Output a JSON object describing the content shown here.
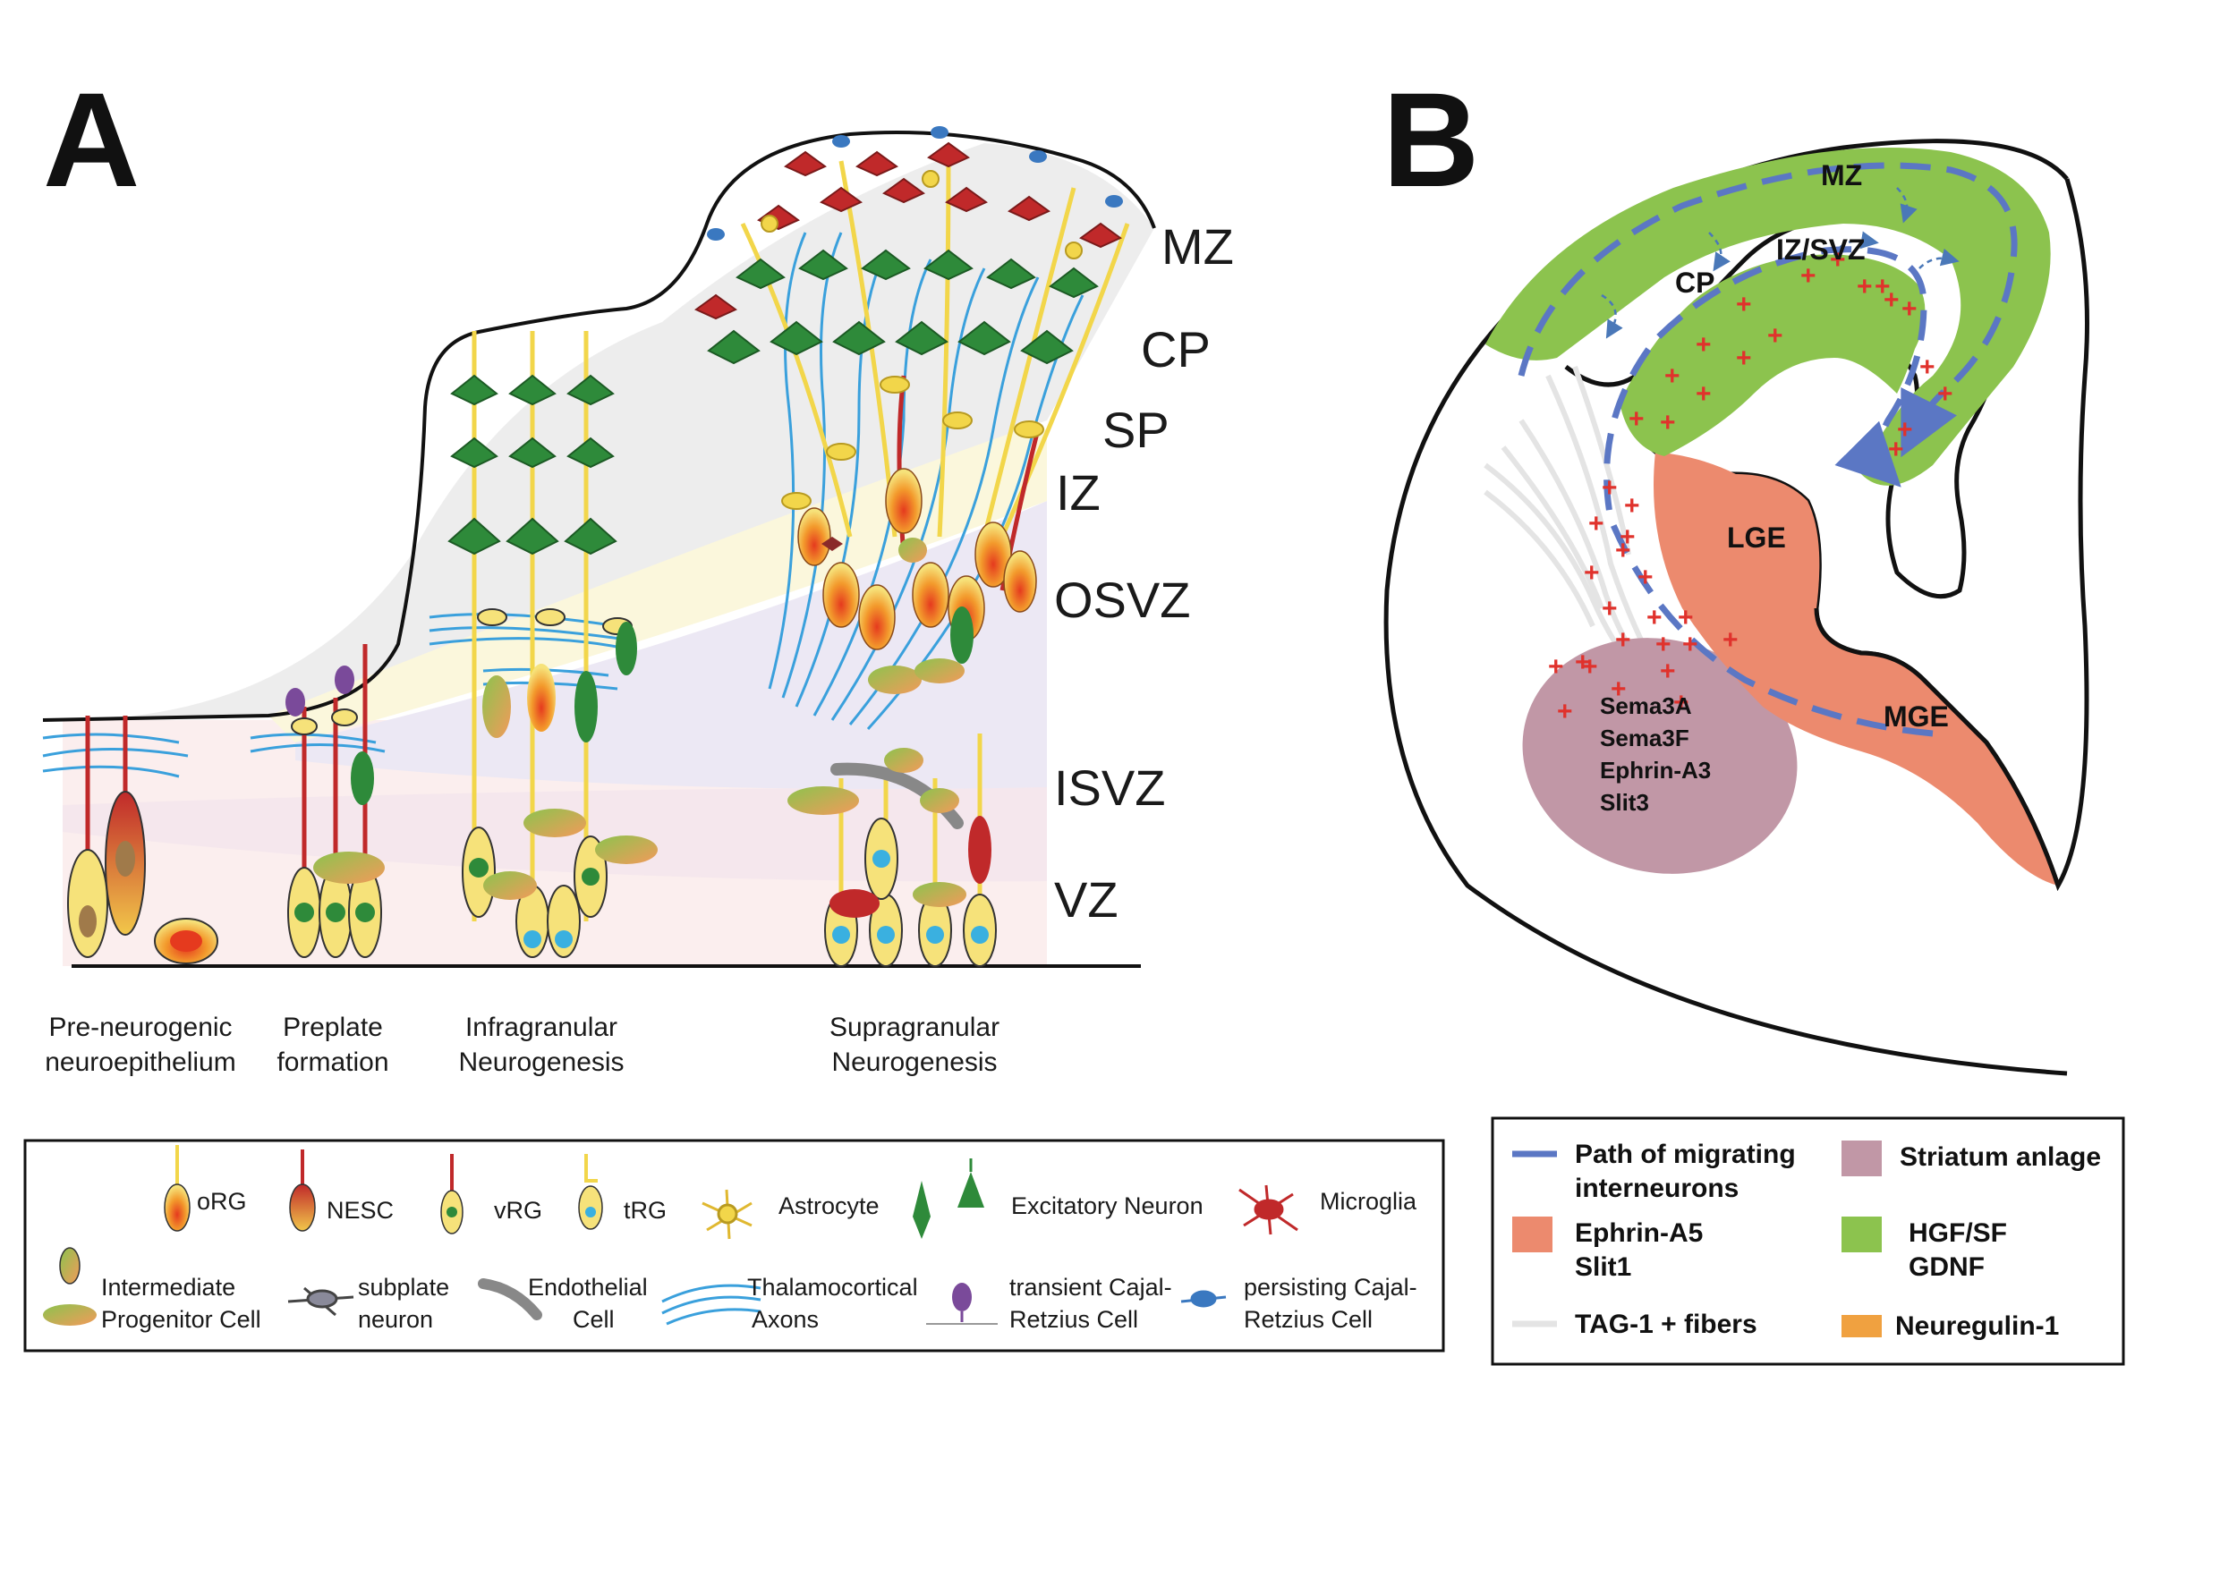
{
  "panel_a": {
    "letter": "A",
    "zones": [
      "MZ",
      "CP",
      "SP",
      "IZ",
      "OSVZ",
      "ISVZ",
      "VZ"
    ],
    "stages": [
      [
        "Pre-neurogenic",
        "neuroepithelium"
      ],
      [
        "Preplate",
        "formation"
      ],
      [
        "Infragranular",
        "Neurogenesis"
      ],
      [
        "Supragranular",
        "Neurogenesis"
      ]
    ],
    "legend": {
      "org": "oRG",
      "nesc": "NESC",
      "vrg": "vRG",
      "trg": "tRG",
      "astro": "Astrocyte",
      "exc": "Excitatory  Neuron",
      "micro": "Microglia",
      "ipc": [
        "Intermediate",
        "Progenitor  Cell"
      ],
      "subplate": [
        "subplate",
        "neuron"
      ],
      "endo": [
        "Endothelial",
        "Cell"
      ],
      "thal": [
        "Thalamocortical",
        "Axons"
      ],
      "tcr": [
        "transient  Cajal-",
        "Retzius  Cell"
      ],
      "pcr": [
        "persisting  Cajal-",
        "Retzius  Cell"
      ]
    }
  },
  "panel_b": {
    "letter": "B",
    "labels": {
      "mz": "MZ",
      "cp": "CP",
      "izsvz": "IZ/SVZ",
      "lge": "LGE",
      "mge": "MGE"
    },
    "striatum_factors": [
      "Sema3A",
      "Sema3F",
      "Ephrin-A3",
      "Slit3"
    ],
    "legend": {
      "path": [
        "Path of migrating",
        "interneurons"
      ],
      "striatum": "Striatum anlage",
      "ephrin": [
        "Ephrin-A5",
        "Slit1"
      ],
      "hgf": [
        "HGF/SF",
        "GDNF"
      ],
      "tag": "TAG-1 + fibers",
      "nrg": "Neuregulin-1"
    },
    "colors": {
      "path": "#5b77c4",
      "striatum": "#c197a6",
      "ephrin": "#ec8a6e",
      "hgf": "#8cc34e",
      "tag": "#e4e4e4",
      "nrg": "#f0a140",
      "plus": "#e0322c"
    }
  }
}
